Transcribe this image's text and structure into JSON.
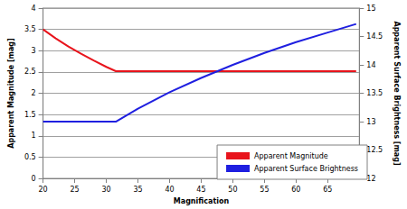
{
  "chart_data": {
    "type": "line",
    "x_label": "Magnification",
    "y_label": "Apparent Magnitude [mag]",
    "y2_label": "Apparent Surface Brightness [mag]",
    "x": [
      20,
      22,
      24,
      26,
      28,
      30,
      31.5,
      35,
      40,
      45,
      50,
      55,
      60,
      65,
      69.5
    ],
    "series": [
      {
        "name": "Apparent Magnitude",
        "color": "#e8141c",
        "values": [
          3.5,
          3.29,
          3.1,
          2.93,
          2.77,
          2.62,
          2.52,
          2.52,
          2.52,
          2.52,
          2.52,
          2.52,
          2.52,
          2.52,
          2.52
        ]
      },
      {
        "name": "Apparent Surface Brightness",
        "color": "#1f1fe0",
        "axis": "y2",
        "values": [
          13,
          13,
          13,
          13,
          13,
          13,
          13,
          13.23,
          13.52,
          13.77,
          14.0,
          14.21,
          14.4,
          14.57,
          14.72
        ]
      }
    ],
    "xlim": [
      20,
      70
    ],
    "xticks": [
      20,
      25,
      30,
      35,
      40,
      45,
      50,
      55,
      60,
      65
    ],
    "ylim": [
      0,
      4
    ],
    "yticks": [
      0,
      0.5,
      1,
      1.5,
      2,
      2.5,
      3,
      3.5,
      4
    ],
    "y2lim": [
      12,
      15
    ],
    "y2ticks": [
      12,
      12.5,
      13,
      13.5,
      14,
      14.5,
      15
    ],
    "grid": true,
    "legend": "lower right"
  }
}
